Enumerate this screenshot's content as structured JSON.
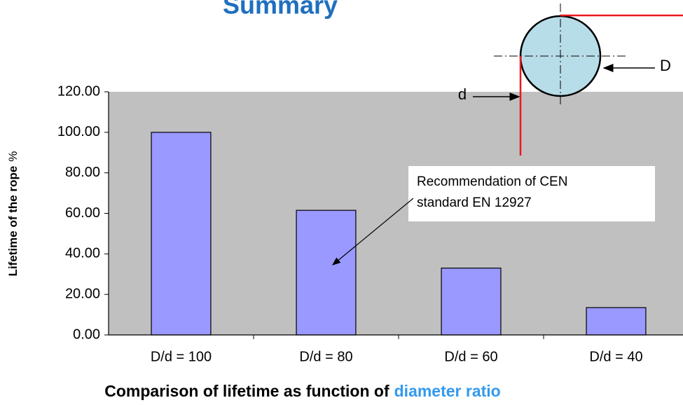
{
  "title": "Summary",
  "caption": {
    "text": "Comparison of lifetime as function of",
    "highlight": "diameter ratio"
  },
  "diagram": {
    "small_label": "d",
    "large_label": "D"
  },
  "chart_data": {
    "type": "bar",
    "ylabel": "Lifetime of the rope",
    "ylabel_unit": "%",
    "categories": [
      "D/d = 100",
      "D/d = 80",
      "D/d = 60",
      "D/d = 40"
    ],
    "values": [
      100,
      61.5,
      33,
      13.5
    ],
    "color": "#9999ff",
    "ylim": [
      0,
      120
    ],
    "yticks": [
      {
        "value": 0,
        "label": "0.00"
      },
      {
        "value": 20,
        "label": "20.00"
      },
      {
        "value": 40,
        "label": "40.00"
      },
      {
        "value": 60,
        "label": "60.00"
      },
      {
        "value": 80,
        "label": "80.00"
      },
      {
        "value": 100,
        "label": "100.00"
      },
      {
        "value": 120,
        "label": "120.00"
      }
    ],
    "grid": false,
    "annotation": [
      "Recommendation of CEN",
      "standard EN 12927"
    ]
  }
}
